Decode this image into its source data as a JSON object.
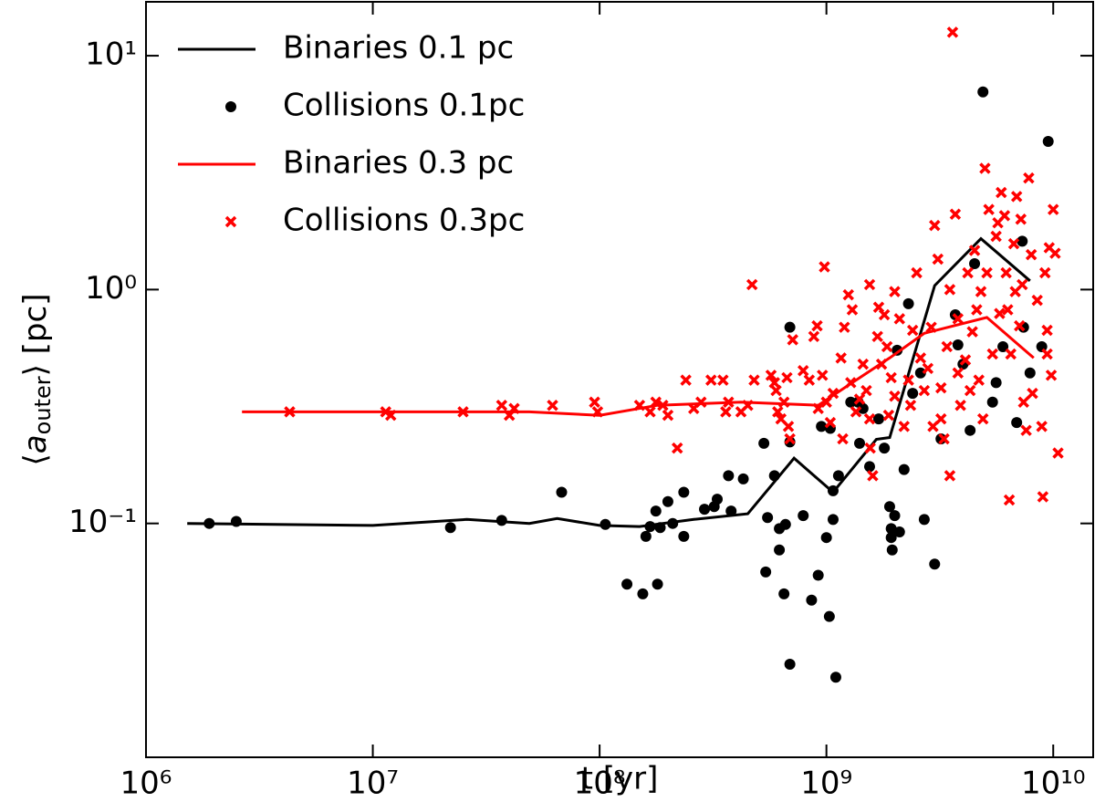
{
  "chart_data": {
    "type": "scatter",
    "xlabel": "t [yr]",
    "ylabel": {
      "open": "⟨",
      "var": "a",
      "sub": "outer",
      "close": "⟩ [pc]"
    },
    "log_x": true,
    "log_y": true,
    "xlim": [
      1000000,
      15000000000
    ],
    "ylim": [
      0.01,
      17
    ],
    "xticks": [
      {
        "value": 1000000,
        "label": "10⁶"
      },
      {
        "value": 10000000,
        "label": "10⁷"
      },
      {
        "value": 100000000,
        "label": "10⁸"
      },
      {
        "value": 1000000000,
        "label": "10⁹"
      },
      {
        "value": 10000000000,
        "label": "10¹⁰"
      }
    ],
    "yticks": [
      {
        "value": 0.1,
        "label": "10⁻¹"
      },
      {
        "value": 1,
        "label": "10⁰"
      },
      {
        "value": 10,
        "label": "10¹"
      }
    ],
    "legend": "upper left",
    "series": [
      {
        "name": "Binaries 0.1 pc",
        "type": "line",
        "color": "#000000",
        "x": [
          1520000,
          10000000,
          26000000,
          49000000,
          65000000,
          100000000,
          150000000,
          260000000,
          450000000,
          720000000,
          1070000000,
          1660000000,
          1900000000,
          3000000000,
          4800000000,
          7900000000
        ],
        "values": [
          0.1,
          0.098,
          0.104,
          0.1,
          0.105,
          0.098,
          0.097,
          0.104,
          0.11,
          0.19,
          0.136,
          0.229,
          0.233,
          1.04,
          1.65,
          1.09
        ]
      },
      {
        "name": "Collisions 0.1pc",
        "type": "scatter",
        "color": "#000000",
        "x": [
          1900000,
          2500000,
          22000000,
          37000000,
          68000000,
          106000000,
          132000000,
          155000000,
          160000000,
          167000000,
          177000000,
          185000000,
          180000000,
          200000000,
          210000000,
          235000000,
          235000000,
          290000000,
          320000000,
          330000000,
          380000000,
          370000000,
          430000000,
          530000000,
          540000000,
          550000000,
          590000000,
          620000000,
          620000000,
          650000000,
          660000000,
          690000000,
          690000000,
          690000000,
          790000000,
          860000000,
          920000000,
          950000000,
          1000000000,
          1030000000,
          1040000000,
          1070000000,
          1070000000,
          1130000000,
          1100000000,
          1280000000,
          1380000000,
          1400000000,
          1450000000,
          1550000000,
          1700000000,
          1800000000,
          1900000000,
          1930000000,
          1930000000,
          1950000000,
          2000000000,
          2050000000,
          2100000000,
          2200000000,
          2300000000,
          2400000000,
          2600000000,
          2700000000,
          3000000000,
          3200000000,
          3700000000,
          3800000000,
          4000000000,
          4300000000,
          4500000000,
          4900000000,
          5400000000,
          5600000000,
          6000000000,
          6900000000,
          7300000000,
          7400000000,
          7900000000,
          8900000000,
          9500000000
        ],
        "values": [
          0.1,
          0.102,
          0.096,
          0.103,
          0.136,
          0.099,
          0.055,
          0.05,
          0.088,
          0.097,
          0.113,
          0.096,
          0.055,
          0.124,
          0.1,
          0.136,
          0.088,
          0.115,
          0.118,
          0.127,
          0.113,
          0.16,
          0.155,
          0.22,
          0.062,
          0.106,
          0.16,
          0.095,
          0.077,
          0.05,
          0.099,
          0.223,
          0.69,
          0.025,
          0.108,
          0.047,
          0.06,
          0.26,
          0.087,
          0.04,
          0.255,
          0.104,
          0.138,
          0.16,
          0.022,
          0.33,
          0.33,
          0.22,
          0.31,
          0.175,
          0.28,
          0.21,
          0.118,
          0.095,
          0.087,
          0.077,
          0.108,
          0.55,
          0.092,
          0.17,
          0.87,
          0.36,
          0.44,
          0.104,
          0.067,
          0.23,
          0.78,
          0.58,
          0.48,
          0.25,
          1.29,
          7.0,
          0.33,
          0.4,
          0.57,
          0.27,
          1.61,
          0.69,
          0.44,
          0.57,
          4.3
        ]
      },
      {
        "name": "Binaries 0.3 pc",
        "type": "line",
        "color": "#ff0000",
        "x": [
          2650000,
          23000000,
          49000000,
          100000000,
          180000000,
          420000000,
          920000000,
          1300000000,
          1900000000,
          2700000000,
          5100000000,
          8200000000
        ],
        "values": [
          0.3,
          0.3,
          0.3,
          0.29,
          0.32,
          0.33,
          0.32,
          0.4,
          0.51,
          0.65,
          0.76,
          0.51
        ]
      },
      {
        "name": "Collisions 0.3pc",
        "type": "scatter",
        "color": "#ff0000",
        "x": [
          4300000,
          11400000,
          12000000,
          25000000,
          37000000,
          40000000,
          42000000,
          62000000,
          95000000,
          98000000,
          150000000,
          167000000,
          177000000,
          190000000,
          200000000,
          220000000,
          240000000,
          260000000,
          280000000,
          310000000,
          350000000,
          360000000,
          370000000,
          420000000,
          450000000,
          480000000,
          470000000,
          570000000,
          590000000,
          600000000,
          610000000,
          630000000,
          650000000,
          670000000,
          680000000,
          690000000,
          710000000,
          790000000,
          840000000,
          880000000,
          910000000,
          920000000,
          960000000,
          980000000,
          1000000000,
          1040000000,
          1070000000,
          1160000000,
          1180000000,
          1200000000,
          1250000000,
          1280000000,
          1300000000,
          1350000000,
          1400000000,
          1450000000,
          1500000000,
          1550000000,
          1550000000,
          1560000000,
          1600000000,
          1680000000,
          1700000000,
          1750000000,
          1800000000,
          1850000000,
          1880000000,
          1930000000,
          2000000000,
          2000000000,
          2100000000,
          2200000000,
          2300000000,
          2350000000,
          2400000000,
          2500000000,
          2600000000,
          2700000000,
          2800000000,
          2900000000,
          2950000000,
          3000000000,
          3100000000,
          3200000000,
          3200000000,
          3300000000,
          3400000000,
          3500000000,
          3500000000,
          3600000000,
          3700000000,
          3800000000,
          3800000000,
          3900000000,
          4100000000,
          4200000000,
          4300000000,
          4400000000,
          4500000000,
          4600000000,
          4700000000,
          4800000000,
          4900000000,
          5000000000,
          5100000000,
          5200000000,
          5400000000,
          5600000000,
          5700000000,
          5800000000,
          5900000000,
          6100000000,
          6200000000,
          6300000000,
          6400000000,
          6500000000,
          6700000000,
          6800000000,
          6900000000,
          7100000000,
          7200000000,
          7300000000,
          7400000000,
          7600000000,
          7800000000,
          8000000000,
          8100000000,
          8500000000,
          8900000000,
          9000000000,
          9200000000,
          9400000000,
          9600000000,
          10000000000,
          10200000000,
          10500000000,
          9800000000,
          9400000000
        ],
        "values": [
          0.3,
          0.3,
          0.29,
          0.3,
          0.32,
          0.29,
          0.31,
          0.32,
          0.33,
          0.3,
          0.32,
          0.3,
          0.33,
          0.32,
          0.29,
          0.21,
          0.41,
          0.31,
          0.33,
          0.41,
          0.41,
          0.3,
          0.33,
          0.3,
          0.32,
          0.41,
          1.05,
          0.43,
          0.4,
          0.37,
          0.3,
          0.28,
          0.33,
          0.42,
          0.26,
          0.23,
          0.61,
          0.45,
          0.41,
          0.63,
          0.7,
          0.31,
          0.43,
          1.25,
          0.33,
          0.27,
          0.36,
          0.51,
          0.23,
          0.69,
          0.95,
          0.4,
          0.82,
          0.3,
          0.34,
          0.48,
          0.37,
          0.28,
          1.05,
          0.21,
          0.16,
          0.63,
          0.84,
          0.48,
          0.78,
          0.57,
          0.29,
          0.42,
          0.98,
          0.35,
          0.75,
          0.26,
          0.41,
          0.32,
          0.67,
          1.18,
          0.51,
          0.37,
          0.46,
          0.69,
          0.26,
          1.88,
          1.35,
          0.28,
          0.38,
          0.23,
          0.57,
          0.16,
          1.0,
          12.6,
          2.1,
          0.44,
          0.75,
          0.32,
          0.5,
          1.18,
          0.37,
          0.66,
          1.47,
          0.82,
          0.41,
          0.98,
          0.28,
          3.3,
          1.18,
          2.2,
          0.53,
          1.69,
          1.93,
          0.79,
          2.6,
          2.07,
          1.18,
          0.82,
          0.126,
          0.53,
          1.57,
          0.98,
          2.5,
          0.7,
          2.0,
          1.05,
          0.33,
          0.25,
          3.0,
          1.41,
          0.36,
          0.9,
          0.26,
          0.13,
          1.18,
          0.53,
          1.51,
          2.2,
          1.43,
          0.2,
          0.43,
          0.67
        ]
      }
    ]
  }
}
